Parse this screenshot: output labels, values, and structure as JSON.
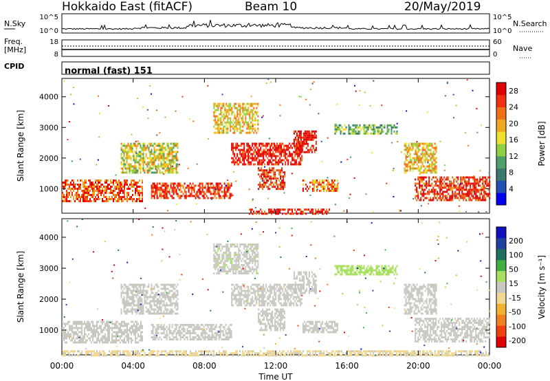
{
  "header": {
    "station": "Hokkaido East (fitACF)",
    "beam": "Beam 10",
    "date": "20/May/2019"
  },
  "strip": {
    "nsky_label": "N.Sky",
    "nsky_ticks": [
      "10^5",
      "10^0"
    ],
    "nsearch_label": "N.Search",
    "freq_label": "Freq.",
    "freq_unit": "[MHz]",
    "freq_ticks": [
      "18",
      "8"
    ],
    "nave_label": "Nave",
    "nave_ticks": [
      "60",
      "0"
    ],
    "cpid_label": "CPID",
    "cpid_value": "normal (fast) 151"
  },
  "colors": {
    "power_scale": [
      "#0000f0",
      "#2050b0",
      "#3a7a6e",
      "#4ea06a",
      "#90d040",
      "#f0e030",
      "#f0a820",
      "#f07018",
      "#f03010",
      "#e00000"
    ],
    "velocity_scale": [
      "#e00000",
      "#f04010",
      "#f08020",
      "#f0b030",
      "#f0d890",
      "#c8c8c0",
      "#a8e060",
      "#40b040",
      "#207060",
      "#2040a0",
      "#1010c0"
    ]
  },
  "chart_data": [
    {
      "type": "heatmap",
      "panel": "power",
      "x_label": "Time UT",
      "y_label": "Slant Range [km]",
      "y_ticks": [
        1000,
        2000,
        3000,
        4000
      ],
      "ylim": [
        200,
        4600
      ],
      "x_ticks": [
        "00:00",
        "04:00",
        "08:00",
        "12:00",
        "16:00",
        "20:00",
        "00:00"
      ],
      "xlim_hours": [
        0,
        24
      ],
      "colorbar_label": "Power [dB]",
      "colorbar_ticks": [
        4,
        8,
        12,
        16,
        20,
        24,
        28
      ],
      "colorbar_range": [
        0,
        30
      ],
      "regions": [
        {
          "t0": 0.0,
          "t1": 4.5,
          "r0": 600,
          "r1": 1300,
          "value": 24
        },
        {
          "t0": 3.3,
          "t1": 6.5,
          "r0": 1500,
          "r1": 2500,
          "value": 16
        },
        {
          "t0": 5.0,
          "t1": 9.5,
          "r0": 700,
          "r1": 1200,
          "value": 26
        },
        {
          "t0": 8.5,
          "t1": 11.0,
          "r0": 2800,
          "r1": 3800,
          "value": 18
        },
        {
          "t0": 9.5,
          "t1": 13.5,
          "r0": 1800,
          "r1": 2500,
          "value": 28
        },
        {
          "t0": 11.0,
          "t1": 12.5,
          "r0": 1000,
          "r1": 1700,
          "value": 26
        },
        {
          "t0": 13.0,
          "t1": 14.3,
          "r0": 2200,
          "r1": 2900,
          "value": 28
        },
        {
          "t0": 13.5,
          "t1": 15.5,
          "r0": 900,
          "r1": 1300,
          "value": 22
        },
        {
          "t0": 15.3,
          "t1": 18.8,
          "r0": 2800,
          "r1": 3100,
          "value": 12
        },
        {
          "t0": 19.8,
          "t1": 24.0,
          "r0": 600,
          "r1": 1400,
          "value": 26
        },
        {
          "t0": 19.2,
          "t1": 21.0,
          "r0": 1500,
          "r1": 2500,
          "value": 18
        },
        {
          "t0": 10.5,
          "t1": 15.0,
          "r0": 200,
          "r1": 350,
          "value": 28
        }
      ]
    },
    {
      "type": "heatmap",
      "panel": "velocity",
      "x_label": "Time UT",
      "y_label": "Slant Range [km]",
      "y_ticks": [
        1000,
        2000,
        3000,
        4000
      ],
      "ylim": [
        200,
        4600
      ],
      "x_ticks": [
        "00:00",
        "04:00",
        "08:00",
        "12:00",
        "16:00",
        "20:00",
        "00:00"
      ],
      "xlim_hours": [
        0,
        24
      ],
      "colorbar_label": "Velocity [m s⁻¹]",
      "colorbar_ticks": [
        "200",
        "100",
        "50",
        "15",
        "-15",
        "-50",
        "-100",
        "-200"
      ],
      "colorbar_range": [
        -250,
        250
      ],
      "regions": [
        {
          "t0": 0.0,
          "t1": 4.5,
          "r0": 600,
          "r1": 1300,
          "value": 0
        },
        {
          "t0": 3.3,
          "t1": 6.5,
          "r0": 1500,
          "r1": 2500,
          "value": 0
        },
        {
          "t0": 5.0,
          "t1": 9.5,
          "r0": 700,
          "r1": 1200,
          "value": 0
        },
        {
          "t0": 8.5,
          "t1": 11.0,
          "r0": 2800,
          "r1": 3800,
          "value": 10
        },
        {
          "t0": 9.5,
          "t1": 13.5,
          "r0": 1800,
          "r1": 2500,
          "value": 0
        },
        {
          "t0": 11.0,
          "t1": 12.5,
          "r0": 1000,
          "r1": 1700,
          "value": 0
        },
        {
          "t0": 13.0,
          "t1": 14.3,
          "r0": 2200,
          "r1": 2900,
          "value": 0
        },
        {
          "t0": 13.5,
          "t1": 15.5,
          "r0": 900,
          "r1": 1300,
          "value": 0
        },
        {
          "t0": 15.3,
          "t1": 18.8,
          "r0": 2800,
          "r1": 3100,
          "value": 40
        },
        {
          "t0": 19.8,
          "t1": 24.0,
          "r0": 600,
          "r1": 1400,
          "value": 0
        },
        {
          "t0": 19.2,
          "t1": 21.0,
          "r0": 1500,
          "r1": 2500,
          "value": 0
        },
        {
          "t0": 0.0,
          "t1": 24.0,
          "r0": 200,
          "r1": 350,
          "value": -30
        }
      ]
    }
  ]
}
